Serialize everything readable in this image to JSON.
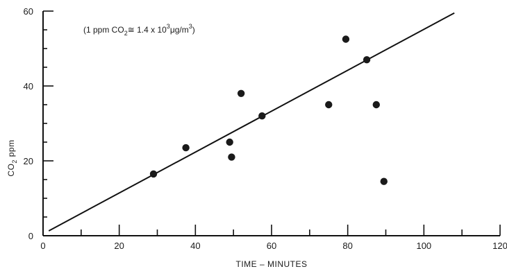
{
  "chart_data": {
    "type": "scatter",
    "xlabel": "TIME – MINUTES",
    "ylabel": "CO",
    "ylabel_sub": "2",
    "ylabel_suffix": " ppm",
    "xlim": [
      0,
      120
    ],
    "ylim": [
      0,
      60
    ],
    "x_ticks": [
      0,
      20,
      40,
      60,
      80,
      100,
      120
    ],
    "y_ticks": [
      0,
      20,
      40,
      60
    ],
    "grid": false,
    "annotation": {
      "p1": "(1 ppm CO",
      "p1_sub": "2",
      "p2": "≅ 1.4 x 10",
      "p2_sup": "3",
      "p3": "μg/m",
      "p3_sup": "3",
      "p4": ")"
    },
    "points": [
      {
        "x": 29,
        "y": 16.5
      },
      {
        "x": 37.5,
        "y": 23.5
      },
      {
        "x": 49,
        "y": 25
      },
      {
        "x": 49.5,
        "y": 21
      },
      {
        "x": 52,
        "y": 38
      },
      {
        "x": 57.5,
        "y": 32
      },
      {
        "x": 75,
        "y": 35
      },
      {
        "x": 79.5,
        "y": 52.5
      },
      {
        "x": 85,
        "y": 47
      },
      {
        "x": 87.5,
        "y": 35
      },
      {
        "x": 89.5,
        "y": 14.5
      }
    ],
    "fit_line": {
      "x": [
        1.5,
        108
      ],
      "y": [
        1.3,
        59.5
      ]
    }
  }
}
